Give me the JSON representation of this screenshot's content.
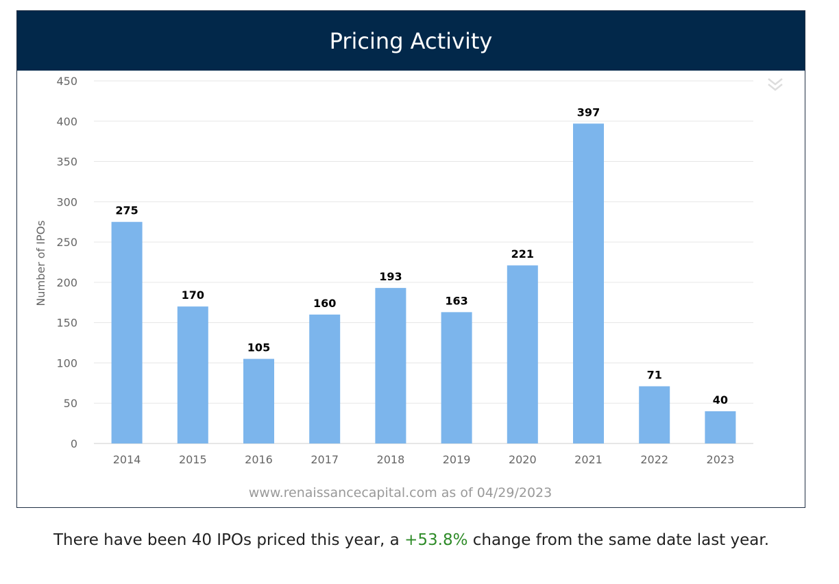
{
  "header": {
    "title": "Pricing Activity"
  },
  "chart_data": {
    "type": "bar",
    "title": "Pricing Activity",
    "categories": [
      "2014",
      "2015",
      "2016",
      "2017",
      "2018",
      "2019",
      "2020",
      "2021",
      "2022",
      "2023"
    ],
    "values": [
      275,
      170,
      105,
      160,
      193,
      163,
      221,
      397,
      71,
      40
    ],
    "xlabel": "",
    "ylabel": "Number of IPOs",
    "ylim": [
      0,
      450
    ],
    "yticks": [
      "0",
      "50",
      "100",
      "150",
      "200",
      "250",
      "300",
      "350",
      "400",
      "450"
    ],
    "grid": true,
    "data_labels": true,
    "bar_color": "#7cb5ec",
    "credit": "www.renaissancecapital.com as of 04/29/2023"
  },
  "caption": {
    "prefix": "There have been 40 IPOs priced this year, a ",
    "change": "+53.8%",
    "suffix": " change from the same date last year."
  },
  "colors": {
    "header_bg": "#02284a",
    "positive_change": "#2e8b28"
  },
  "icons": {
    "menu": "double-chevron-down-icon"
  }
}
